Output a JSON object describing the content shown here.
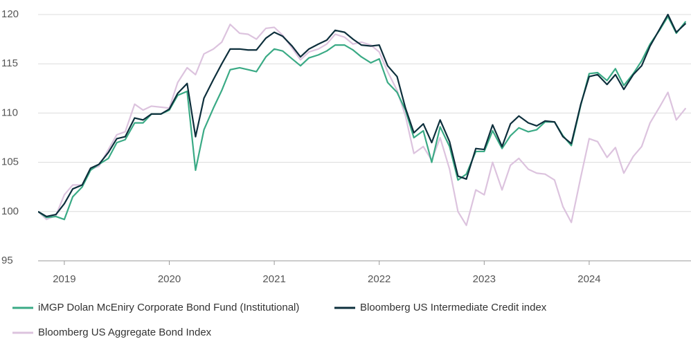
{
  "chart_data": {
    "type": "line",
    "x": [
      2018.75,
      2018.83,
      2018.92,
      2019,
      2019.08,
      2019.17,
      2019.25,
      2019.33,
      2019.42,
      2019.5,
      2019.58,
      2019.67,
      2019.75,
      2019.83,
      2019.92,
      2020,
      2020.08,
      2020.17,
      2020.25,
      2020.33,
      2020.42,
      2020.5,
      2020.58,
      2020.67,
      2020.75,
      2020.83,
      2020.92,
      2021,
      2021.08,
      2021.17,
      2021.25,
      2021.33,
      2021.42,
      2021.5,
      2021.58,
      2021.67,
      2021.75,
      2021.83,
      2021.92,
      2022,
      2022.08,
      2022.17,
      2022.25,
      2022.33,
      2022.42,
      2022.5,
      2022.58,
      2022.67,
      2022.75,
      2022.83,
      2022.92,
      2023,
      2023.08,
      2023.17,
      2023.25,
      2023.33,
      2023.42,
      2023.5,
      2023.58,
      2023.67,
      2023.75,
      2023.83,
      2023.92,
      2024,
      2024.08,
      2024.17,
      2024.25,
      2024.33,
      2024.42,
      2024.5,
      2024.58,
      2024.67,
      2024.75,
      2024.83,
      2024.92
    ],
    "series": [
      {
        "name": "Bloomberg US Aggregate Bond Index",
        "color": "#dcc3de",
        "values": [
          100,
          99.2,
          99.6,
          101.7,
          102.7,
          102.7,
          104.3,
          104.6,
          106.3,
          107.8,
          108.1,
          110.9,
          110.3,
          110.7,
          110.6,
          110.5,
          113.1,
          114.6,
          113.9,
          116.0,
          116.5,
          117.2,
          119.0,
          118.1,
          118.0,
          117.5,
          118.6,
          118.7,
          117.9,
          116.6,
          115.4,
          116.2,
          116.5,
          117.0,
          118.0,
          117.7,
          117.0,
          117.2,
          116.9,
          116.2,
          114.2,
          112.3,
          109.7,
          105.9,
          106.6,
          105.2,
          107.5,
          104.3,
          100.0,
          98.6,
          102.2,
          101.7,
          105.0,
          102.2,
          104.7,
          105.4,
          104.3,
          103.9,
          103.8,
          103.2,
          100.5,
          98.9,
          103.5,
          107.4,
          107.1,
          105.5,
          106.5,
          103.9,
          105.6,
          106.6,
          109.0,
          110.6,
          112.1,
          109.3,
          110.5
        ]
      },
      {
        "name": "iMGP Dolan McEniry Corporate Bond Fund (Institutional)",
        "color": "#3aaa85",
        "values": [
          100,
          99.4,
          99.5,
          99.2,
          101.5,
          102.5,
          104.2,
          104.8,
          105.4,
          107.0,
          107.3,
          109.0,
          109.0,
          109.9,
          109.9,
          110.3,
          111.8,
          112.2,
          104.2,
          108.3,
          110.5,
          112.3,
          114.4,
          114.6,
          114.4,
          114.2,
          115.7,
          116.5,
          116.3,
          115.5,
          114.8,
          115.6,
          115.9,
          116.3,
          116.9,
          116.9,
          116.4,
          115.7,
          115.1,
          115.5,
          113.1,
          112.1,
          110.3,
          107.5,
          108.2,
          105.0,
          108.6,
          106.6,
          103.2,
          103.8,
          106.1,
          106.1,
          108.2,
          106.4,
          107.7,
          108.5,
          108.1,
          108.3,
          109.1,
          109.1,
          107.7,
          106.7,
          110.8,
          114.0,
          114.1,
          113.3,
          114.5,
          112.8,
          114.0,
          115.3,
          117.0,
          118.4,
          119.8,
          118.1,
          119.3
        ]
      },
      {
        "name": "Bloomberg US Intermediate Credit index",
        "color": "#0d2f3c",
        "values": [
          100,
          99.5,
          99.7,
          100.8,
          102.3,
          102.7,
          104.4,
          104.8,
          106.0,
          107.4,
          107.6,
          109.5,
          109.3,
          109.9,
          109.9,
          110.4,
          112.0,
          113.0,
          107.6,
          111.5,
          113.4,
          115.0,
          116.5,
          116.5,
          116.4,
          116.4,
          117.6,
          118.2,
          117.8,
          116.8,
          115.7,
          116.5,
          117.0,
          117.4,
          118.4,
          118.2,
          117.5,
          116.9,
          116.8,
          116.9,
          114.8,
          113.7,
          110.5,
          108.0,
          108.9,
          107.0,
          109.3,
          107.1,
          103.6,
          103.3,
          106.4,
          106.3,
          108.8,
          106.6,
          108.9,
          109.7,
          109.0,
          108.7,
          109.2,
          109.1,
          107.6,
          106.9,
          110.9,
          113.7,
          113.9,
          112.9,
          113.9,
          112.4,
          113.9,
          114.8,
          116.8,
          118.5,
          120.0,
          118.2,
          119.1
        ]
      }
    ],
    "legend_order": [
      1,
      2,
      0
    ],
    "xlim": [
      2018.75,
      2024.97
    ],
    "xticks": [
      2019,
      2020,
      2021,
      2022,
      2023,
      2024
    ],
    "ylim": [
      95,
      120
    ],
    "yticks": [
      95,
      100,
      105,
      110,
      115,
      120
    ],
    "grid": true,
    "legend": "bottom"
  }
}
